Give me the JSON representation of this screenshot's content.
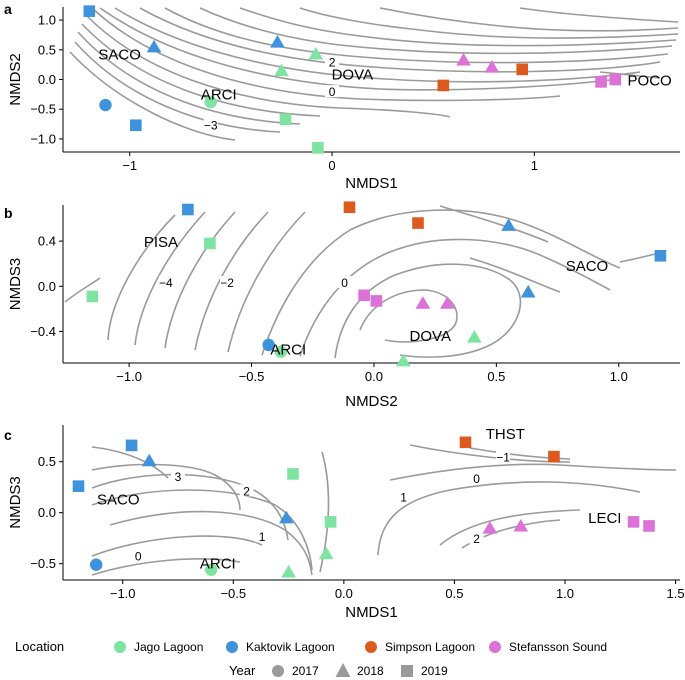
{
  "colors": {
    "Jago Lagoon": "#7fe3a2",
    "Kaktovik Lagoon": "#3f93dd",
    "Simpson Lagoon": "#dc5a1e",
    "Stefansson Sound": "#dc72d8",
    "year_shape": "#9a9a9a",
    "contour": "#9a9a9a"
  },
  "legend": {
    "location_title": "Location",
    "locations": [
      "Jago Lagoon",
      "Kaktovik Lagoon",
      "Simpson Lagoon",
      "Stefansson Sound"
    ],
    "year_title": "Year",
    "years": [
      "2017",
      "2018",
      "2019"
    ]
  },
  "chart_data": [
    {
      "type": "scatter",
      "panel": "a",
      "xlabel": "NMDS1",
      "ylabel": "NMDS2",
      "xlim": [
        -1.33,
        1.72
      ],
      "ylim": [
        -1.22,
        1.22
      ],
      "xticks": [
        -1,
        0,
        1
      ],
      "yticks": [
        -1.0,
        -0.5,
        0.0,
        0.5,
        1.0
      ],
      "xticklabels": [
        "−1",
        "0",
        "1"
      ],
      "yticklabels": [
        "−1.0",
        "−0.5",
        "0.0",
        "0.5",
        "1.0"
      ],
      "site_labels": [
        {
          "text": "SACO",
          "x": -1.05,
          "y": 0.42
        },
        {
          "text": "DOVA",
          "x": 0.1,
          "y": 0.08
        },
        {
          "text": "ARCI",
          "x": -0.56,
          "y": -0.25
        },
        {
          "text": "POCO",
          "x": 1.57,
          "y": -0.02
        }
      ],
      "contour_labels": [
        {
          "text": "2",
          "x": 0.0,
          "y": 0.27
        },
        {
          "text": "0",
          "x": 0.0,
          "y": -0.23
        },
        {
          "text": "−3",
          "x": -0.6,
          "y": -0.79
        }
      ],
      "points": [
        {
          "location": "Kaktovik Lagoon",
          "year": "2019",
          "x": -1.2,
          "y": 1.15
        },
        {
          "location": "Kaktovik Lagoon",
          "year": "2018",
          "x": -0.88,
          "y": 0.55
        },
        {
          "location": "Kaktovik Lagoon",
          "year": "2018",
          "x": -0.27,
          "y": 0.63
        },
        {
          "location": "Jago Lagoon",
          "year": "2018",
          "x": -0.08,
          "y": 0.43
        },
        {
          "location": "Jago Lagoon",
          "year": "2018",
          "x": -0.25,
          "y": 0.15
        },
        {
          "location": "Kaktovik Lagoon",
          "year": "2017",
          "x": -1.12,
          "y": -0.43
        },
        {
          "location": "Kaktovik Lagoon",
          "year": "2019",
          "x": -0.97,
          "y": -0.77
        },
        {
          "location": "Jago Lagoon",
          "year": "2017",
          "x": -0.6,
          "y": -0.38
        },
        {
          "location": "Jago Lagoon",
          "year": "2019",
          "x": -0.23,
          "y": -0.67
        },
        {
          "location": "Jago Lagoon",
          "year": "2019",
          "x": -0.07,
          "y": -1.15
        },
        {
          "location": "Stefansson Sound",
          "year": "2018",
          "x": 0.65,
          "y": 0.33
        },
        {
          "location": "Stefansson Sound",
          "year": "2018",
          "x": 0.79,
          "y": 0.21
        },
        {
          "location": "Simpson Lagoon",
          "year": "2019",
          "x": 0.55,
          "y": -0.1
        },
        {
          "location": "Simpson Lagoon",
          "year": "2019",
          "x": 0.94,
          "y": 0.17
        },
        {
          "location": "Stefansson Sound",
          "year": "2019",
          "x": 1.33,
          "y": -0.04
        },
        {
          "location": "Stefansson Sound",
          "year": "2019",
          "x": 1.4,
          "y": 0.0
        }
      ]
    },
    {
      "type": "scatter",
      "panel": "b",
      "xlabel": "NMDS2",
      "ylabel": "NMDS3",
      "xlim": [
        -1.27,
        1.25
      ],
      "ylim": [
        -0.68,
        0.72
      ],
      "xticks": [
        -1.0,
        -0.5,
        0.0,
        0.5,
        1.0
      ],
      "yticks": [
        -0.4,
        0.0,
        0.4
      ],
      "xticklabels": [
        "−1.0",
        "−0.5",
        "0.0",
        "0.5",
        "1.0"
      ],
      "yticklabels": [
        "−0.4",
        "0.0",
        "0.4"
      ],
      "site_labels": [
        {
          "text": "PISA",
          "x": -0.87,
          "y": 0.39
        },
        {
          "text": "SACO",
          "x": 0.87,
          "y": 0.18
        },
        {
          "text": "DOVA",
          "x": 0.23,
          "y": -0.44
        },
        {
          "text": "ARCI",
          "x": -0.35,
          "y": -0.56
        }
      ],
      "contour_labels": [
        {
          "text": "−4",
          "x": -0.85,
          "y": 0.02
        },
        {
          "text": "−2",
          "x": -0.6,
          "y": 0.02
        },
        {
          "text": "0",
          "x": -0.12,
          "y": 0.02
        }
      ],
      "points": [
        {
          "location": "Kaktovik Lagoon",
          "year": "2019",
          "x": -0.76,
          "y": 0.68
        },
        {
          "location": "Jago Lagoon",
          "year": "2019",
          "x": -0.67,
          "y": 0.38
        },
        {
          "location": "Jago Lagoon",
          "year": "2019",
          "x": -1.15,
          "y": -0.09
        },
        {
          "location": "Simpson Lagoon",
          "year": "2019",
          "x": -0.1,
          "y": 0.7
        },
        {
          "location": "Simpson Lagoon",
          "year": "2019",
          "x": 0.18,
          "y": 0.56
        },
        {
          "location": "Kaktovik Lagoon",
          "year": "2018",
          "x": 0.55,
          "y": 0.54
        },
        {
          "location": "Kaktovik Lagoon",
          "year": "2019",
          "x": 1.17,
          "y": 0.27
        },
        {
          "location": "Kaktovik Lagoon",
          "year": "2018",
          "x": 0.63,
          "y": -0.05
        },
        {
          "location": "Stefansson Sound",
          "year": "2019",
          "x": -0.04,
          "y": -0.08
        },
        {
          "location": "Stefansson Sound",
          "year": "2019",
          "x": 0.01,
          "y": -0.13
        },
        {
          "location": "Stefansson Sound",
          "year": "2018",
          "x": 0.2,
          "y": -0.15
        },
        {
          "location": "Stefansson Sound",
          "year": "2018",
          "x": 0.3,
          "y": -0.15
        },
        {
          "location": "Jago Lagoon",
          "year": "2018",
          "x": 0.41,
          "y": -0.45
        },
        {
          "location": "Jago Lagoon",
          "year": "2018",
          "x": 0.12,
          "y": -0.66
        },
        {
          "location": "Kaktovik Lagoon",
          "year": "2017",
          "x": -0.43,
          "y": -0.52
        },
        {
          "location": "Jago Lagoon",
          "year": "2017",
          "x": -0.38,
          "y": -0.58
        }
      ]
    },
    {
      "type": "scatter",
      "panel": "c",
      "xlabel": "NMDS1",
      "ylabel": "NMDS3",
      "xlim": [
        -1.27,
        1.52
      ],
      "ylim": [
        -0.66,
        0.86
      ],
      "xticks": [
        -1.0,
        -0.5,
        0.0,
        0.5,
        1.0,
        1.5
      ],
      "yticks": [
        -0.5,
        0.0,
        0.5
      ],
      "xticklabels": [
        "−1.0",
        "−0.5",
        "0.0",
        "0.5",
        "1.0",
        "1.5"
      ],
      "yticklabels": [
        "−0.5",
        "0.0",
        "0.5"
      ],
      "site_labels": [
        {
          "text": "SACO",
          "x": -1.02,
          "y": 0.13
        },
        {
          "text": "ARCI",
          "x": -0.57,
          "y": -0.5
        },
        {
          "text": "THST",
          "x": 0.73,
          "y": 0.77
        },
        {
          "text": "LECI",
          "x": 1.18,
          "y": -0.05
        }
      ],
      "contour_labels": [
        {
          "text": "3",
          "x": -0.75,
          "y": 0.34
        },
        {
          "text": "2",
          "x": -0.44,
          "y": 0.2
        },
        {
          "text": "1",
          "x": -0.37,
          "y": -0.25
        },
        {
          "text": "0",
          "x": -0.93,
          "y": -0.44
        },
        {
          "text": "1",
          "x": 0.27,
          "y": 0.14
        },
        {
          "text": "0",
          "x": 0.6,
          "y": 0.32
        },
        {
          "text": "−1",
          "x": 0.72,
          "y": 0.53
        },
        {
          "text": "2",
          "x": 0.6,
          "y": -0.27
        }
      ],
      "points": [
        {
          "location": "Kaktovik Lagoon",
          "year": "2019",
          "x": -0.96,
          "y": 0.66
        },
        {
          "location": "Kaktovik Lagoon",
          "year": "2018",
          "x": -0.88,
          "y": 0.51
        },
        {
          "location": "Kaktovik Lagoon",
          "year": "2019",
          "x": -1.2,
          "y": 0.26
        },
        {
          "location": "Jago Lagoon",
          "year": "2019",
          "x": -0.23,
          "y": 0.38
        },
        {
          "location": "Kaktovik Lagoon",
          "year": "2018",
          "x": -0.26,
          "y": -0.05
        },
        {
          "location": "Jago Lagoon",
          "year": "2019",
          "x": -0.06,
          "y": -0.09
        },
        {
          "location": "Jago Lagoon",
          "year": "2018",
          "x": -0.08,
          "y": -0.4
        },
        {
          "location": "Jago Lagoon",
          "year": "2018",
          "x": -0.25,
          "y": -0.58
        },
        {
          "location": "Kaktovik Lagoon",
          "year": "2017",
          "x": -1.12,
          "y": -0.51
        },
        {
          "location": "Jago Lagoon",
          "year": "2017",
          "x": -0.6,
          "y": -0.56
        },
        {
          "location": "Simpson Lagoon",
          "year": "2019",
          "x": 0.55,
          "y": 0.69
        },
        {
          "location": "Simpson Lagoon",
          "year": "2019",
          "x": 0.95,
          "y": 0.55
        },
        {
          "location": "Stefansson Sound",
          "year": "2018",
          "x": 0.66,
          "y": -0.15
        },
        {
          "location": "Stefansson Sound",
          "year": "2018",
          "x": 0.8,
          "y": -0.13
        },
        {
          "location": "Stefansson Sound",
          "year": "2019",
          "x": 1.31,
          "y": -0.09
        },
        {
          "location": "Stefansson Sound",
          "year": "2019",
          "x": 1.38,
          "y": -0.13
        }
      ]
    }
  ]
}
